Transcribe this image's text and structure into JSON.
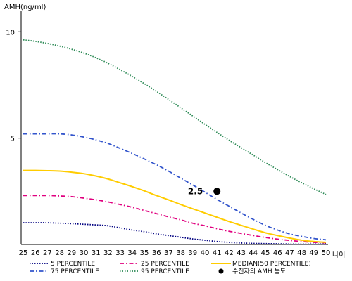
{
  "chart_data": {
    "type": "line",
    "ylabel": "AMH(ng/ml)",
    "xlabel": "나이",
    "ylim": [
      0,
      11
    ],
    "xlim": [
      25,
      50
    ],
    "yticks": [
      5,
      10
    ],
    "x": [
      25,
      26,
      27,
      28,
      29,
      30,
      31,
      32,
      33,
      34,
      35,
      36,
      37,
      38,
      39,
      40,
      41,
      42,
      43,
      44,
      45,
      46,
      47,
      48,
      49,
      50
    ],
    "series": [
      {
        "name": "5 PERCENTILE",
        "color": "#000080",
        "style": "dotted",
        "values": [
          1.02,
          1.02,
          1.02,
          1.0,
          0.98,
          0.95,
          0.92,
          0.88,
          0.78,
          0.68,
          0.6,
          0.5,
          0.42,
          0.34,
          0.26,
          0.2,
          0.14,
          0.1,
          0.07,
          0.05,
          0.04,
          0.03,
          0.02,
          0.02,
          0.02,
          0.02
        ]
      },
      {
        "name": "25 PERCENTILE",
        "color": "#e0007f",
        "style": "dashdot",
        "values": [
          2.3,
          2.3,
          2.3,
          2.28,
          2.25,
          2.18,
          2.1,
          2.0,
          1.88,
          1.75,
          1.6,
          1.45,
          1.3,
          1.16,
          1.0,
          0.88,
          0.74,
          0.62,
          0.52,
          0.42,
          0.33,
          0.25,
          0.19,
          0.14,
          0.1,
          0.08
        ]
      },
      {
        "name": "MEDIAN(50 PERCENTILE)",
        "color": "#ffcc00",
        "style": "solid",
        "values": [
          3.48,
          3.48,
          3.47,
          3.45,
          3.4,
          3.33,
          3.22,
          3.08,
          2.9,
          2.72,
          2.52,
          2.3,
          2.1,
          1.88,
          1.68,
          1.48,
          1.28,
          1.08,
          0.9,
          0.72,
          0.55,
          0.42,
          0.3,
          0.2,
          0.14,
          0.1
        ]
      },
      {
        "name": "75 PERCENTILE",
        "color": "#3355cc",
        "style": "dashdot",
        "values": [
          5.2,
          5.2,
          5.2,
          5.2,
          5.15,
          5.05,
          4.92,
          4.75,
          4.52,
          4.28,
          4.02,
          3.75,
          3.45,
          3.12,
          2.8,
          2.46,
          2.12,
          1.8,
          1.48,
          1.18,
          0.9,
          0.68,
          0.5,
          0.38,
          0.28,
          0.22
        ]
      },
      {
        "name": "95 PERCENTILE",
        "color": "#2e8b57",
        "style": "dotted",
        "values": [
          9.62,
          9.55,
          9.45,
          9.33,
          9.18,
          9.0,
          8.78,
          8.52,
          8.22,
          7.9,
          7.56,
          7.2,
          6.82,
          6.43,
          6.04,
          5.65,
          5.27,
          4.9,
          4.55,
          4.2,
          3.85,
          3.52,
          3.2,
          2.9,
          2.62,
          2.35
        ]
      }
    ],
    "annotation": {
      "name": "수진자의 AMH 농도",
      "x": 41,
      "y": 2.5,
      "label": "2.5",
      "color": "#000000"
    },
    "legend": {
      "position": "bottom",
      "columns": 3
    }
  }
}
